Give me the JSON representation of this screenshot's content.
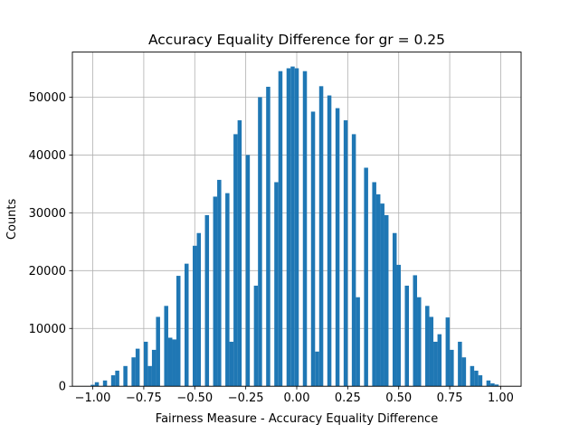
{
  "chart_data": {
    "type": "bar",
    "title": "Accuracy Equality Difference for gr = 0.25",
    "xlabel": "Fairness Measure - Accuracy Equality Difference",
    "ylabel": "Counts",
    "xlim": [
      -1.1,
      1.1
    ],
    "ylim": [
      0,
      57800
    ],
    "grid": true,
    "bar_color": "#1f77b4",
    "bin_width": 0.02,
    "xticks": [
      -1.0,
      -0.75,
      -0.5,
      -0.25,
      0.0,
      0.25,
      0.5,
      0.75,
      1.0
    ],
    "xtick_labels": [
      "−1.00",
      "−0.75",
      "−0.50",
      "−0.25",
      "0.00",
      "0.25",
      "0.50",
      "0.75",
      "1.00"
    ],
    "yticks": [
      0,
      10000,
      20000,
      30000,
      40000,
      50000
    ],
    "ytick_labels": [
      "0",
      "10000",
      "20000",
      "30000",
      "40000",
      "50000"
    ],
    "bars": [
      {
        "x": -1.0,
        "value": 250
      },
      {
        "x": -0.98,
        "value": 700
      },
      {
        "x": -0.94,
        "value": 1000
      },
      {
        "x": -0.9,
        "value": 1900
      },
      {
        "x": -0.88,
        "value": 2700
      },
      {
        "x": -0.84,
        "value": 3500
      },
      {
        "x": -0.8,
        "value": 5000
      },
      {
        "x": -0.78,
        "value": 6500
      },
      {
        "x": -0.74,
        "value": 7700
      },
      {
        "x": -0.72,
        "value": 3500
      },
      {
        "x": -0.7,
        "value": 6300
      },
      {
        "x": -0.68,
        "value": 12000
      },
      {
        "x": -0.64,
        "value": 13900
      },
      {
        "x": -0.62,
        "value": 8400
      },
      {
        "x": -0.6,
        "value": 8100
      },
      {
        "x": -0.58,
        "value": 19100
      },
      {
        "x": -0.54,
        "value": 21200
      },
      {
        "x": -0.5,
        "value": 24300
      },
      {
        "x": -0.48,
        "value": 26500
      },
      {
        "x": -0.44,
        "value": 29600
      },
      {
        "x": -0.4,
        "value": 32800
      },
      {
        "x": -0.38,
        "value": 35700
      },
      {
        "x": -0.34,
        "value": 33400
      },
      {
        "x": -0.32,
        "value": 7700
      },
      {
        "x": -0.3,
        "value": 43600
      },
      {
        "x": -0.28,
        "value": 46000
      },
      {
        "x": -0.24,
        "value": 40000
      },
      {
        "x": -0.2,
        "value": 17400
      },
      {
        "x": -0.18,
        "value": 50000
      },
      {
        "x": -0.14,
        "value": 51800
      },
      {
        "x": -0.1,
        "value": 35300
      },
      {
        "x": -0.08,
        "value": 54500
      },
      {
        "x": -0.04,
        "value": 55000
      },
      {
        "x": -0.02,
        "value": 55300
      },
      {
        "x": 0.0,
        "value": 55000
      },
      {
        "x": 0.04,
        "value": 54500
      },
      {
        "x": 0.08,
        "value": 47500
      },
      {
        "x": 0.1,
        "value": 6000
      },
      {
        "x": 0.12,
        "value": 51900
      },
      {
        "x": 0.16,
        "value": 50300
      },
      {
        "x": 0.2,
        "value": 48100
      },
      {
        "x": 0.24,
        "value": 46000
      },
      {
        "x": 0.28,
        "value": 43600
      },
      {
        "x": 0.3,
        "value": 15400
      },
      {
        "x": 0.34,
        "value": 37800
      },
      {
        "x": 0.38,
        "value": 35300
      },
      {
        "x": 0.4,
        "value": 33200
      },
      {
        "x": 0.42,
        "value": 31600
      },
      {
        "x": 0.44,
        "value": 29600
      },
      {
        "x": 0.48,
        "value": 26500
      },
      {
        "x": 0.5,
        "value": 21000
      },
      {
        "x": 0.54,
        "value": 17400
      },
      {
        "x": 0.58,
        "value": 19200
      },
      {
        "x": 0.6,
        "value": 15400
      },
      {
        "x": 0.64,
        "value": 13900
      },
      {
        "x": 0.66,
        "value": 12000
      },
      {
        "x": 0.68,
        "value": 7700
      },
      {
        "x": 0.7,
        "value": 9000
      },
      {
        "x": 0.74,
        "value": 11900
      },
      {
        "x": 0.76,
        "value": 6300
      },
      {
        "x": 0.8,
        "value": 7700
      },
      {
        "x": 0.82,
        "value": 5000
      },
      {
        "x": 0.86,
        "value": 3500
      },
      {
        "x": 0.88,
        "value": 2700
      },
      {
        "x": 0.9,
        "value": 1900
      },
      {
        "x": 0.94,
        "value": 1000
      },
      {
        "x": 0.96,
        "value": 500
      },
      {
        "x": 0.98,
        "value": 300
      }
    ]
  }
}
